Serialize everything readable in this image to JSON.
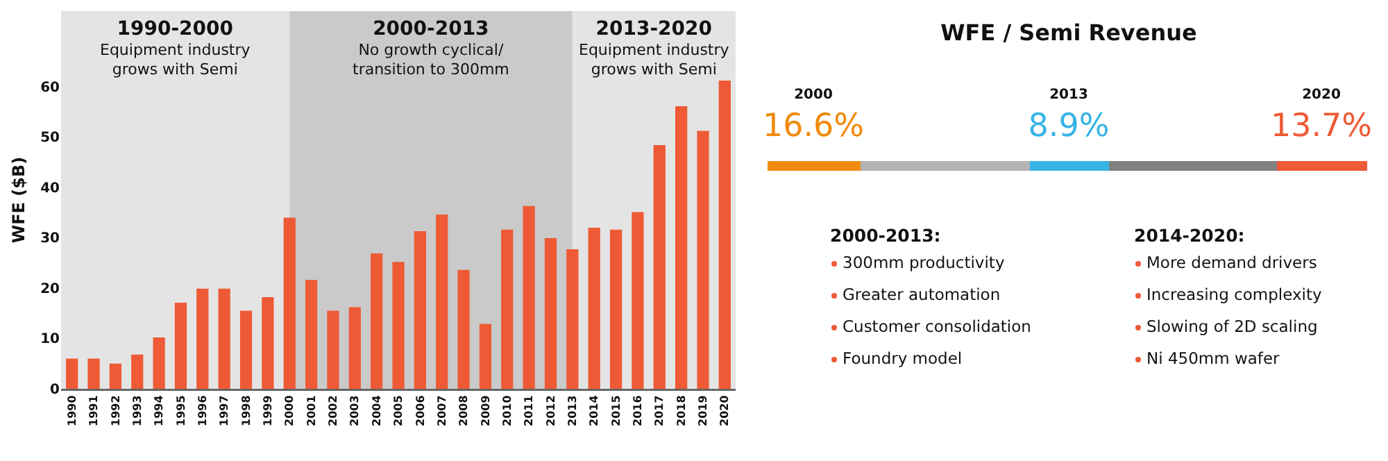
{
  "chart_data": [
    {
      "type": "bar",
      "ylabel": "WFE ($B)",
      "categories": [
        "1990",
        "1991",
        "1992",
        "1993",
        "1994",
        "1995",
        "1996",
        "1997",
        "1998",
        "1999",
        "2000",
        "2001",
        "2002",
        "2003",
        "2004",
        "2005",
        "2006",
        "2007",
        "2008",
        "2009",
        "2010",
        "2011",
        "2012",
        "2013",
        "2014",
        "2015",
        "2016",
        "2017",
        "2018",
        "2019",
        "2020"
      ],
      "values": [
        6.0,
        6.0,
        5.0,
        6.8,
        10.2,
        17.1,
        19.9,
        19.9,
        15.5,
        18.2,
        34.0,
        21.6,
        15.5,
        16.2,
        26.9,
        25.2,
        31.3,
        34.6,
        23.6,
        12.9,
        31.6,
        36.3,
        29.9,
        27.7,
        32.0,
        31.6,
        35.1,
        48.4,
        56.1,
        51.2,
        61.2
      ],
      "color": "#ee5a35",
      "ylim": [
        0,
        75
      ],
      "yticks": [
        0,
        10,
        20,
        30,
        40,
        50,
        60
      ],
      "grid": false,
      "legend": false,
      "bands": [
        {
          "axis": "x",
          "from": "1990",
          "to": "2000",
          "label": "1990-2000\nEquipment industry\ngrows with Semi",
          "color": "#e4e4e4"
        },
        {
          "axis": "x",
          "from": "2000",
          "to": "2013",
          "label": "2000-2013\nNo growth cyclical/\ntransition to 300mm",
          "color": "#cacaca"
        },
        {
          "axis": "x",
          "from": "2013",
          "to": "2020",
          "label": "2013-2020\nEquipment industry\ngrows with Semi",
          "color": "#e4e4e4"
        }
      ]
    },
    {
      "type": "other",
      "title": "WFE / Semi Revenue",
      "colors": [
        "#f08a0c",
        "#b3b3b3",
        "#38b3e6",
        "#808080",
        "#ee5a35"
      ],
      "annotations": [
        "2000",
        "16.6%",
        "2013",
        "8.9%",
        "2020",
        "13.7%",
        "2000-2013:",
        "300mm productivity",
        "Greater automation",
        "Customer consolidation",
        "Foundry model",
        "2014-2020:",
        "More demand drivers",
        "Increasing complexity",
        "Slowing of 2D scaling",
        "Ni 450mm wafer"
      ]
    }
  ]
}
